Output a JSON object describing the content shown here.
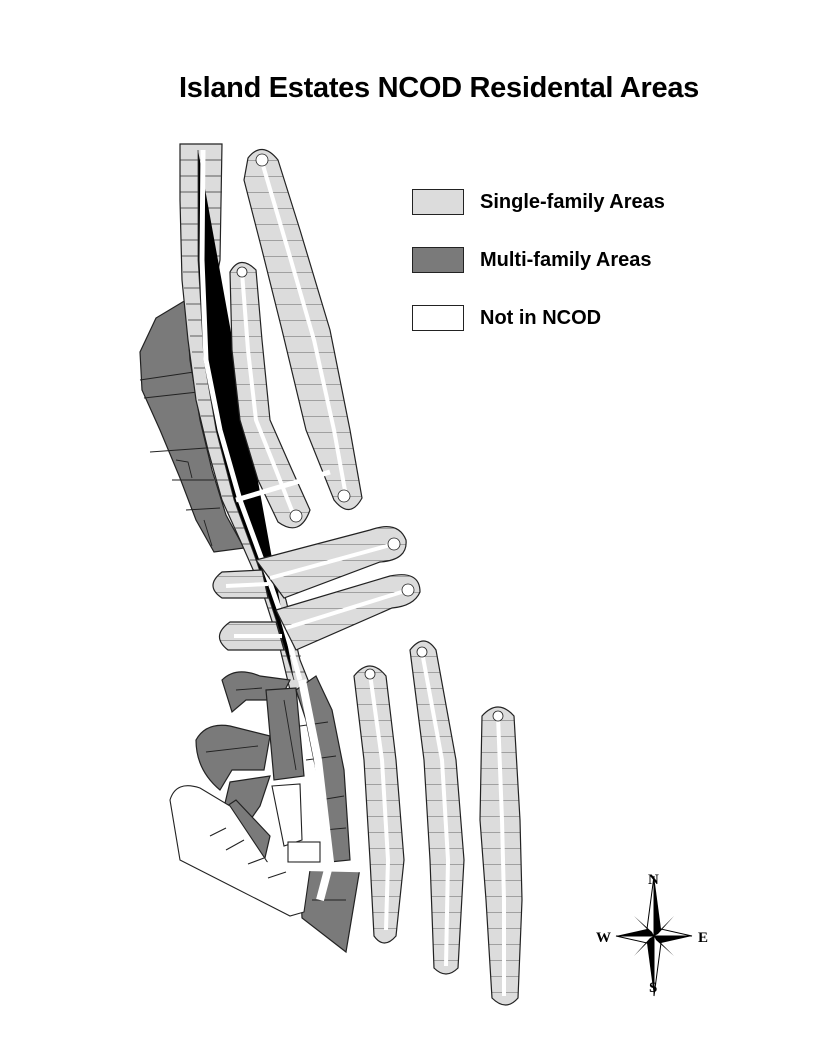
{
  "title": "Island Estates NCOD Residental Areas",
  "legend": {
    "items": [
      {
        "label": "Single-family Areas",
        "color": "#dcdcdc"
      },
      {
        "label": "Multi-family Areas",
        "color": "#7a7a7a"
      },
      {
        "label": "Not in NCOD",
        "color": "#ffffff"
      }
    ]
  },
  "compass": {
    "north": "N",
    "south": "S",
    "east": "E",
    "west": "W"
  },
  "colors": {
    "single_family": "#dcdcdc",
    "multi_family": "#7a7a7a",
    "road": "#ffffff",
    "lot_line": "#333333"
  }
}
